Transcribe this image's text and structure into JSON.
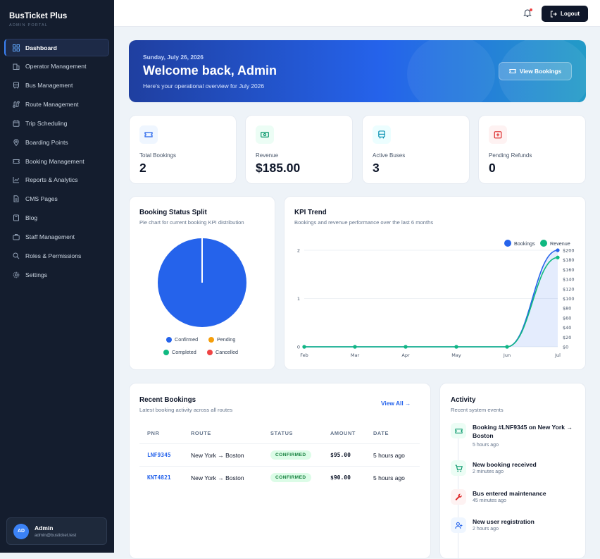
{
  "sidebar": {
    "brand": "BusTicket Plus",
    "brand_sub": "ADMIN PORTAL",
    "items": [
      {
        "label": "Dashboard",
        "icon": "dashboard-icon"
      },
      {
        "label": "Operator Management",
        "icon": "building-icon"
      },
      {
        "label": "Bus Management",
        "icon": "bus-icon"
      },
      {
        "label": "Route Management",
        "icon": "route-icon"
      },
      {
        "label": "Trip Scheduling",
        "icon": "calendar-icon"
      },
      {
        "label": "Boarding Points",
        "icon": "map-pin-icon"
      },
      {
        "label": "Booking Management",
        "icon": "ticket-icon"
      },
      {
        "label": "Reports & Analytics",
        "icon": "chart-icon"
      },
      {
        "label": "CMS Pages",
        "icon": "file-icon"
      },
      {
        "label": "Blog",
        "icon": "book-icon"
      },
      {
        "label": "Staff Management",
        "icon": "briefcase-icon"
      },
      {
        "label": "Roles & Permissions",
        "icon": "shield-icon"
      },
      {
        "label": "Settings",
        "icon": "gear-icon"
      }
    ],
    "user": {
      "initials": "AD",
      "name": "Admin",
      "email": "admin@busticket.test"
    }
  },
  "topbar": {
    "logout_label": "Logout"
  },
  "hero": {
    "date": "Sunday, July 26, 2026",
    "title": "Welcome back, Admin",
    "subtitle": "Here's your operational overview for July 2026",
    "button": "View Bookings"
  },
  "stats": [
    {
      "label": "Total Bookings",
      "value": "2",
      "icon": "ticket-icon",
      "color": "#2563eb",
      "bg": "#eff6ff"
    },
    {
      "label": "Revenue",
      "value": "$185.00",
      "icon": "money-icon",
      "color": "#059669",
      "bg": "#ecfdf5"
    },
    {
      "label": "Active Buses",
      "value": "3",
      "icon": "bus-icon",
      "color": "#0891b2",
      "bg": "#ecfeff"
    },
    {
      "label": "Pending Refunds",
      "value": "0",
      "icon": "refund-icon",
      "color": "#dc2626",
      "bg": "#fef2f2"
    }
  ],
  "pie": {
    "title": "Booking Status Split",
    "subtitle": "Pie chart for current booking KPI distribution",
    "legend": [
      {
        "label": "Confirmed",
        "color": "#2563eb"
      },
      {
        "label": "Pending",
        "color": "#f59e0b"
      },
      {
        "label": "Completed",
        "color": "#10b981"
      },
      {
        "label": "Cancelled",
        "color": "#ef4444"
      }
    ]
  },
  "kpi": {
    "title": "KPI Trend",
    "subtitle": "Bookings and revenue performance over the last 6 months",
    "legend": [
      {
        "label": "Bookings",
        "color": "#2563eb"
      },
      {
        "label": "Revenue",
        "color": "#10b981"
      }
    ]
  },
  "chart_data": [
    {
      "type": "pie",
      "categories": [
        "Confirmed",
        "Pending",
        "Completed",
        "Cancelled"
      ],
      "values": [
        2,
        0,
        0,
        0
      ],
      "colors": [
        "#2563eb",
        "#f59e0b",
        "#10b981",
        "#ef4444"
      ]
    },
    {
      "type": "line",
      "x": [
        "Feb",
        "Mar",
        "Apr",
        "May",
        "Jun",
        "Jul"
      ],
      "series": [
        {
          "name": "Bookings",
          "values": [
            0,
            0,
            0,
            0,
            0,
            2
          ],
          "axis": "left",
          "color": "#2563eb"
        },
        {
          "name": "Revenue",
          "values": [
            0,
            0,
            0,
            0,
            0,
            185
          ],
          "axis": "right",
          "color": "#10b981"
        }
      ],
      "ylim_left": [
        0,
        2
      ],
      "yticks_left": [
        "0",
        "1",
        "2"
      ],
      "ylim_right": [
        0,
        200
      ],
      "yticks_right": [
        "$0",
        "$20",
        "$40",
        "$60",
        "$80",
        "$100",
        "$120",
        "$140",
        "$160",
        "$180",
        "$200"
      ],
      "legend": "top-right",
      "grid": true
    }
  ],
  "bookings": {
    "title": "Recent Bookings",
    "subtitle": "Latest booking activity across all routes",
    "view_all": "View All",
    "headers": [
      "PNR",
      "ROUTE",
      "STATUS",
      "AMOUNT",
      "DATE"
    ],
    "rows": [
      {
        "pnr": "LNF9345",
        "route": "New York → Boston",
        "status": "CONFIRMED",
        "amount": "$95.00",
        "date": "5 hours ago"
      },
      {
        "pnr": "KNT4821",
        "route": "New York → Boston",
        "status": "CONFIRMED",
        "amount": "$90.00",
        "date": "5 hours ago"
      }
    ]
  },
  "activity": {
    "title": "Activity",
    "subtitle": "Recent system events",
    "items": [
      {
        "title": "Booking #LNF9345 on New York → Boston",
        "time": "5 hours ago",
        "icon": "ticket-icon",
        "color": "#059669",
        "bg": "#ecfdf5"
      },
      {
        "title": "New booking received",
        "time": "2 minutes ago",
        "icon": "cart-icon",
        "color": "#059669",
        "bg": "#ecfdf5"
      },
      {
        "title": "Bus entered maintenance",
        "time": "45 minutes ago",
        "icon": "wrench-icon",
        "color": "#dc2626",
        "bg": "#fef2f2"
      },
      {
        "title": "New user registration",
        "time": "2 hours ago",
        "icon": "user-plus-icon",
        "color": "#2563eb",
        "bg": "#eff6ff"
      }
    ]
  }
}
